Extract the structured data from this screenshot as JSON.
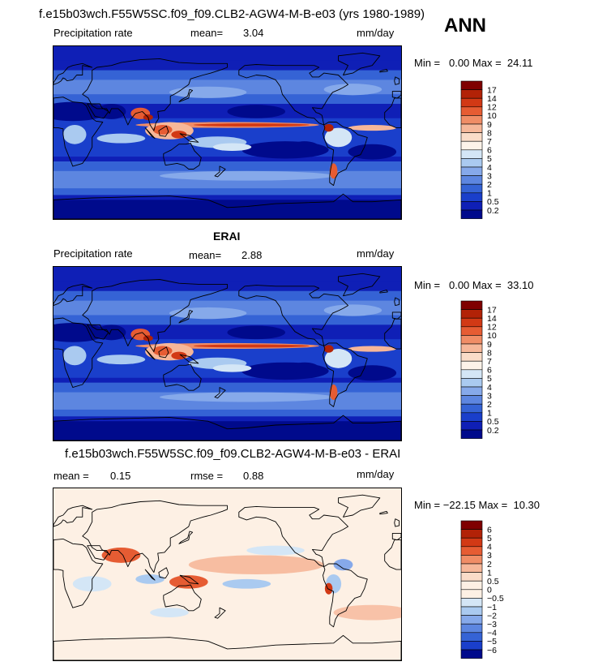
{
  "header": {
    "title": "f.e15b03wch.F55W5SC.f09_f09.CLB2-AGW4-M-B-e03 (yrs 1980-1989)",
    "season": "ANN"
  },
  "chart_data": [
    {
      "type": "heatmap",
      "title": "f.e15b03wch.F55W5SC.f09_f09.CLB2-AGW4-M-B-e03 (yrs 1980-1989)",
      "left_label": "Precipitation rate",
      "stat_label": "mean=",
      "stat_value": "3.04",
      "units": "mm/day",
      "min_text": "Min =   0.00 Max =  24.11",
      "colorbar_levels": [
        "17",
        "14",
        "12",
        "10",
        "9",
        "8",
        "7",
        "6",
        "5",
        "4",
        "3",
        "2",
        "1",
        "0.5",
        "0.2"
      ],
      "colors": [
        "#7f0000",
        "#b22207",
        "#d23915",
        "#e65c33",
        "#f08d66",
        "#f6b799",
        "#fadcc8",
        "#fdf3e9",
        "#d4e6f6",
        "#aacaf0",
        "#86a9ea",
        "#5d86e0",
        "#3563d5",
        "#1a3fcb",
        "#0f1fb6",
        "#000a8c"
      ]
    },
    {
      "type": "heatmap",
      "title": "ERAI",
      "left_label": "Precipitation rate",
      "stat_label": "mean=",
      "stat_value": "2.88",
      "units": "mm/day",
      "min_text": "Min =   0.00 Max =  33.10",
      "colorbar_levels": [
        "17",
        "14",
        "12",
        "10",
        "9",
        "8",
        "7",
        "6",
        "5",
        "4",
        "3",
        "2",
        "1",
        "0.5",
        "0.2"
      ],
      "colors": [
        "#7f0000",
        "#b22207",
        "#d23915",
        "#e65c33",
        "#f08d66",
        "#f6b799",
        "#fadcc8",
        "#fdf3e9",
        "#d4e6f6",
        "#aacaf0",
        "#86a9ea",
        "#5d86e0",
        "#3563d5",
        "#1a3fcb",
        "#0f1fb6",
        "#000a8c"
      ]
    },
    {
      "type": "heatmap",
      "title": "f.e15b03wch.F55W5SC.f09_f09.CLB2-AGW4-M-B-e03 - ERAI",
      "left_label": "mean =",
      "left_value": "0.15",
      "stat_label": "rmse =",
      "stat_value": "0.88",
      "units": "mm/day",
      "min_text": "Min = −22.15 Max =  10.30",
      "colorbar_levels": [
        "6",
        "5",
        "4",
        "3",
        "2",
        "1",
        "0.5",
        "0",
        "−0.5",
        "−1",
        "−2",
        "−3",
        "−4",
        "−5",
        "−6"
      ],
      "colors": [
        "#7f0000",
        "#b22207",
        "#d23915",
        "#e65c33",
        "#f08d66",
        "#f6b799",
        "#fadcc8",
        "#fdf0e4",
        "#fdf0e4",
        "#d4e6f6",
        "#aacaf0",
        "#86a9ea",
        "#5d86e0",
        "#3563d5",
        "#1a3fcb",
        "#000a8c"
      ]
    }
  ]
}
